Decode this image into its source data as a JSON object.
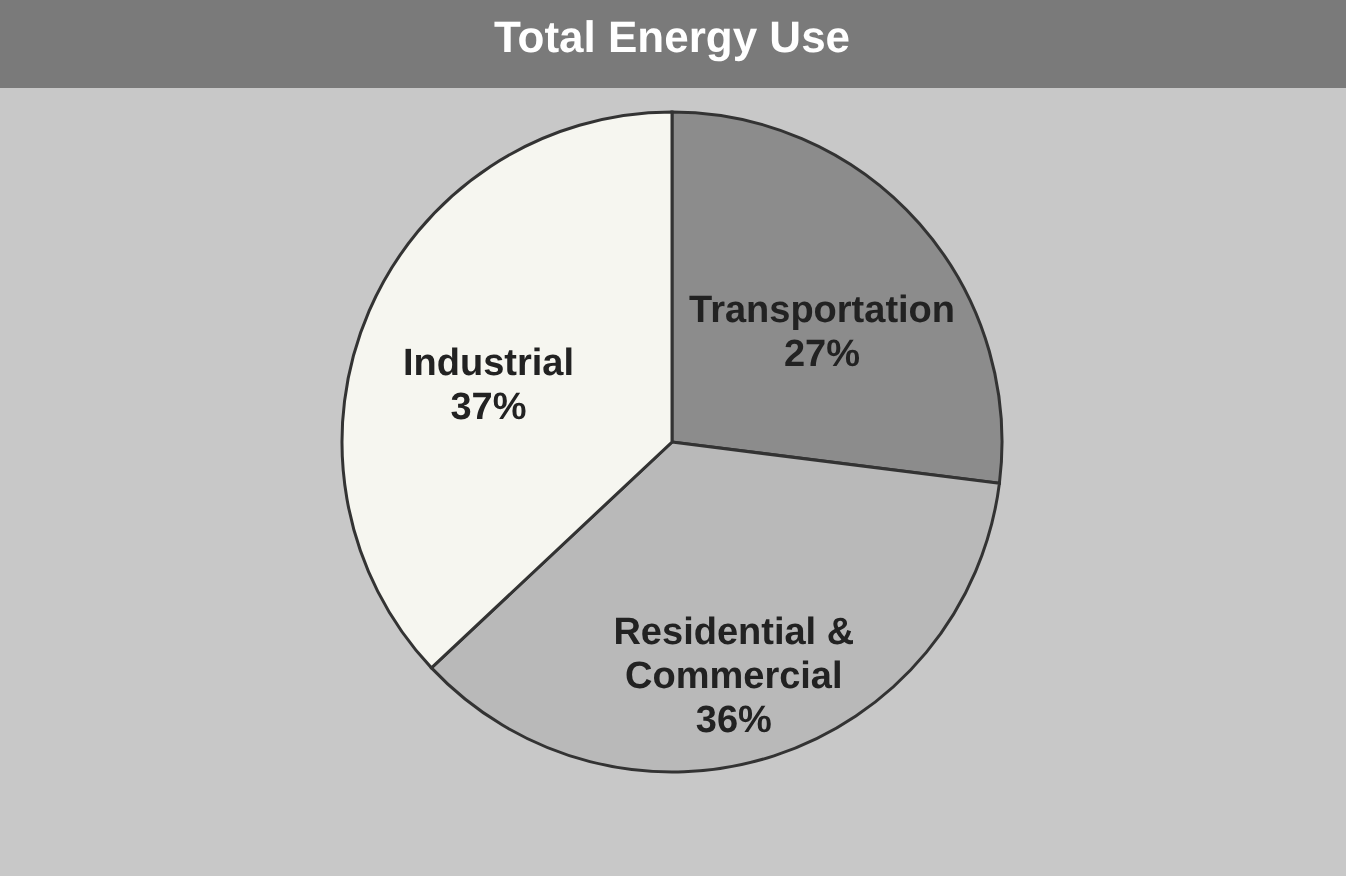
{
  "chart_data": {
    "type": "pie",
    "title": "Total Energy Use",
    "categories": [
      "Transportation",
      "Residential & Commercial",
      "Industrial"
    ],
    "values": [
      27,
      36,
      37
    ],
    "value_labels": [
      "27%",
      "36%",
      "37%"
    ],
    "colors": [
      "#8c8c8c",
      "#b9b9b9",
      "#f6f6f0"
    ],
    "legend": false
  }
}
